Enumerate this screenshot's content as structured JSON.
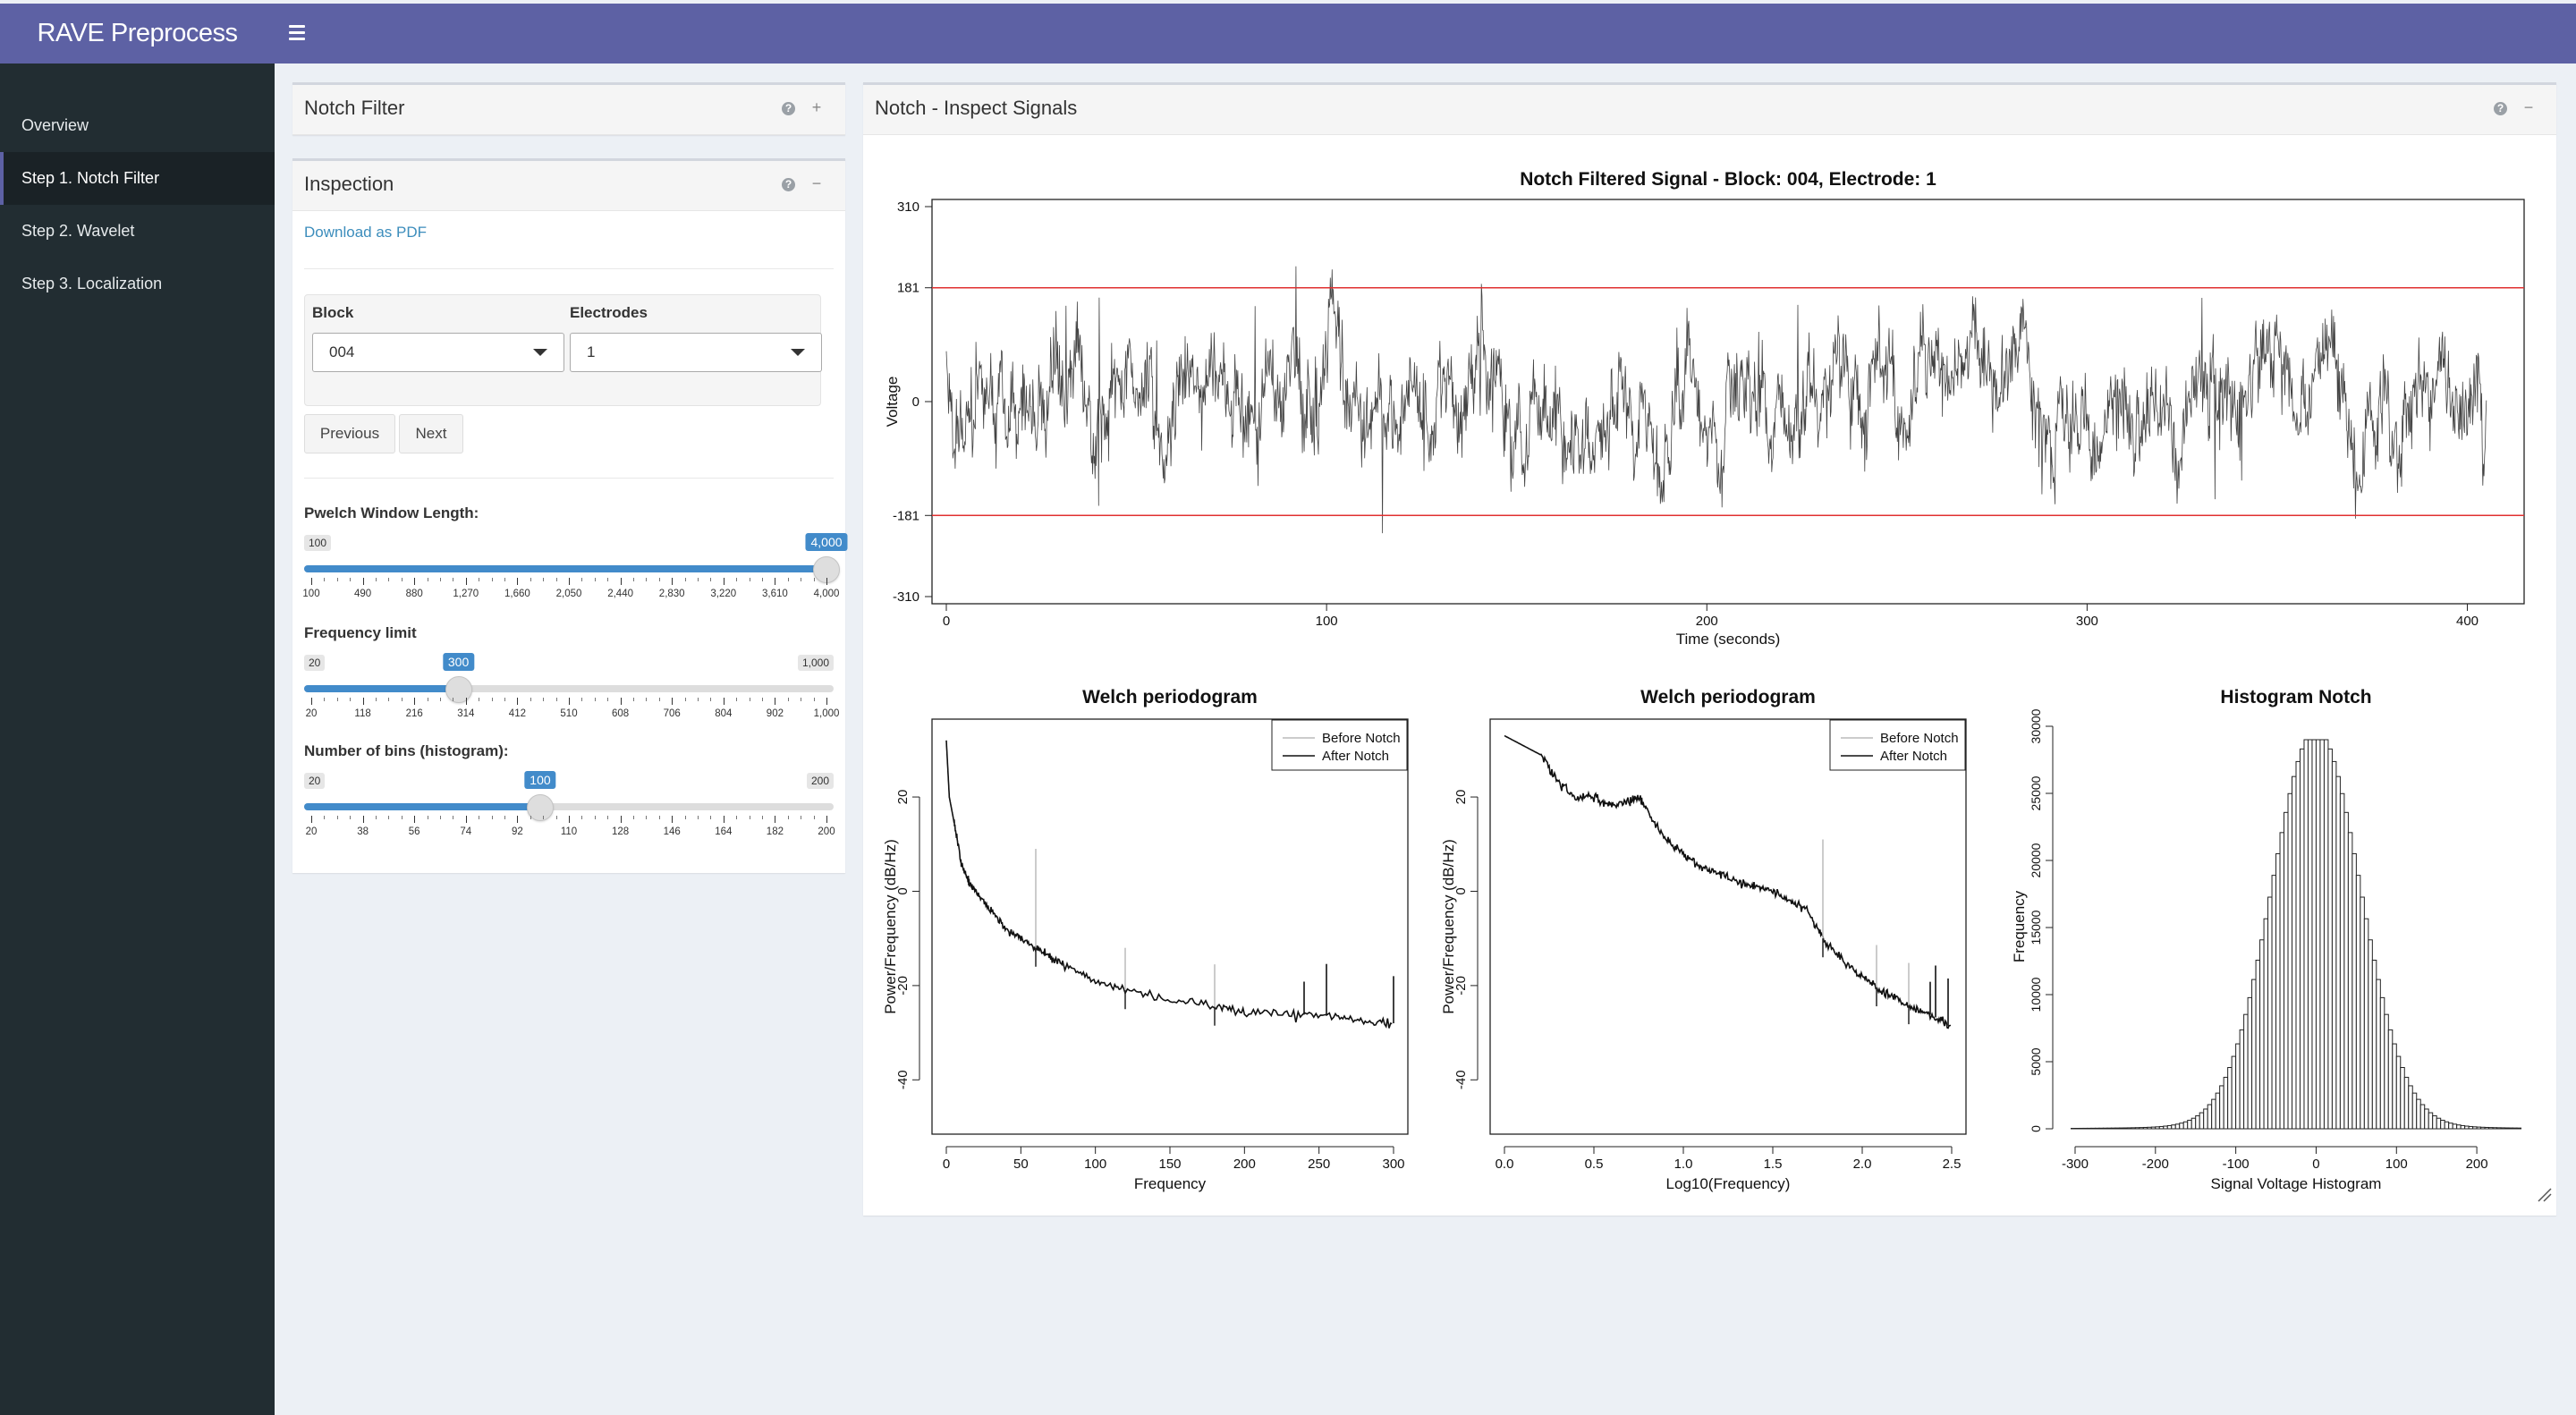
{
  "app": {
    "title": "RAVE Preprocess"
  },
  "sidebar": {
    "items": [
      {
        "label": "Overview"
      },
      {
        "label": "Step 1. Notch Filter"
      },
      {
        "label": "Step 2. Wavelet"
      },
      {
        "label": "Step 3. Localization"
      }
    ],
    "active_index": 1
  },
  "notch_box": {
    "title": "Notch Filter",
    "help_icon": "question-circle-icon",
    "expand_icon": "plus-icon"
  },
  "inspection_box": {
    "title": "Inspection",
    "download_label": "Download as PDF",
    "block_label": "Block",
    "block_value": "004",
    "electrodes_label": "Electrodes",
    "electrodes_value": "1",
    "previous_label": "Previous",
    "next_label": "Next",
    "sliders": [
      {
        "label": "Pwelch Window Length:",
        "min_label": "100",
        "max_label": "4,000",
        "value_label": "4,000",
        "fraction": 1.0,
        "ticks": [
          "100",
          "490",
          "880",
          "1,270",
          "1,660",
          "2,050",
          "2,440",
          "2,830",
          "3,220",
          "3,610",
          "4,000"
        ]
      },
      {
        "label": "Frequency limit",
        "min_label": "20",
        "max_label": "1,000",
        "value_label": "300",
        "fraction": 0.2857,
        "ticks": [
          "20",
          "118",
          "216",
          "314",
          "412",
          "510",
          "608",
          "706",
          "804",
          "902",
          "1,000"
        ]
      },
      {
        "label": "Number of bins (histogram):",
        "min_label": "20",
        "max_label": "200",
        "value_label": "100",
        "fraction": 0.4444,
        "ticks": [
          "20",
          "38",
          "56",
          "74",
          "92",
          "110",
          "128",
          "146",
          "164",
          "182",
          "200"
        ]
      }
    ]
  },
  "signals_box": {
    "title": "Notch - Inspect Signals"
  },
  "chart_data": [
    {
      "type": "line",
      "title": "Notch Filtered Signal - Block: 004, Electrode: 1",
      "xlabel": "Time (seconds)",
      "ylabel": "Voltage",
      "xlim": [
        0,
        405
      ],
      "ylim": [
        -310,
        310
      ],
      "x_ticks": [
        "0",
        "100",
        "200",
        "300",
        "400"
      ],
      "y_ticks": [
        "310",
        "181",
        "0",
        "-181",
        "-310"
      ],
      "threshold_lines": [
        181,
        -181
      ],
      "threshold_color": "#e03030",
      "series_color": "#222222"
    },
    {
      "type": "line",
      "title": "Welch periodogram",
      "xlabel": "Frequency",
      "ylabel": "Power/Frequency (dB/Hz)",
      "xlim": [
        0,
        300
      ],
      "ylim": [
        -50,
        35
      ],
      "x_ticks": [
        "0",
        "50",
        "100",
        "150",
        "200",
        "250",
        "300"
      ],
      "y_ticks": [
        "20",
        "0",
        "-20",
        "-40"
      ],
      "legend": [
        "Before Notch",
        "After Notch"
      ],
      "series": [
        {
          "name": "After Notch",
          "x": [
            0,
            2,
            5,
            10,
            15,
            20,
            30,
            40,
            50,
            60,
            70,
            80,
            100,
            120,
            150,
            180,
            200,
            230,
            260,
            280,
            300
          ],
          "y": [
            32,
            20,
            15,
            6,
            2,
            0,
            -4,
            -8,
            -10,
            -12,
            -14,
            -16,
            -19,
            -21,
            -23,
            -24.5,
            -25.5,
            -26,
            -26.5,
            -27.5,
            -28
          ]
        }
      ],
      "spikes_before": [
        60,
        120,
        180
      ],
      "spikes_after": [
        240,
        255,
        300
      ]
    },
    {
      "type": "line",
      "title": "Welch periodogram",
      "xlabel": "Log10(Frequency)",
      "ylabel": "Power/Frequency (dB/Hz)",
      "xlim": [
        0,
        2.5
      ],
      "ylim": [
        -50,
        35
      ],
      "x_ticks": [
        "0.0",
        "0.5",
        "1.0",
        "1.5",
        "2.0",
        "2.5"
      ],
      "y_ticks": [
        "20",
        "0",
        "-20",
        "-40"
      ],
      "legend": [
        "Before Notch",
        "After Notch"
      ],
      "series": [
        {
          "name": "After Notch",
          "x": [
            0,
            0.1,
            0.2,
            0.3,
            0.4,
            0.5,
            0.6,
            0.7,
            0.75,
            0.8,
            0.9,
            1.0,
            1.1,
            1.2,
            1.3,
            1.4,
            1.5,
            1.6,
            1.7,
            1.78,
            1.9,
            2.0,
            2.1,
            2.2,
            2.3,
            2.4,
            2.5
          ],
          "y": [
            33,
            31,
            29,
            23,
            20,
            20,
            18,
            19,
            20,
            17,
            11,
            8,
            5,
            4,
            2,
            1,
            0,
            -2,
            -4,
            -10,
            -15,
            -18,
            -21,
            -23,
            -25,
            -26.5,
            -29
          ]
        }
      ],
      "spikes_before": [
        1.78,
        2.08,
        2.26
      ],
      "spikes_after": [
        2.38,
        2.41,
        2.48
      ]
    },
    {
      "type": "bar",
      "title": "Histogram Notch",
      "xlabel": "Signal Voltage Histogram",
      "ylabel": "Frequency",
      "xlim": [
        -310,
        260
      ],
      "ylim": [
        0,
        30000
      ],
      "x_ticks": [
        "-300",
        "-200",
        "-100",
        "0",
        "100",
        "200"
      ],
      "y_ticks": [
        "0",
        "5000",
        "10000",
        "15000",
        "20000",
        "25000",
        "30000"
      ],
      "distribution": {
        "center": 0,
        "peak": 29000,
        "sd": 55
      }
    }
  ]
}
